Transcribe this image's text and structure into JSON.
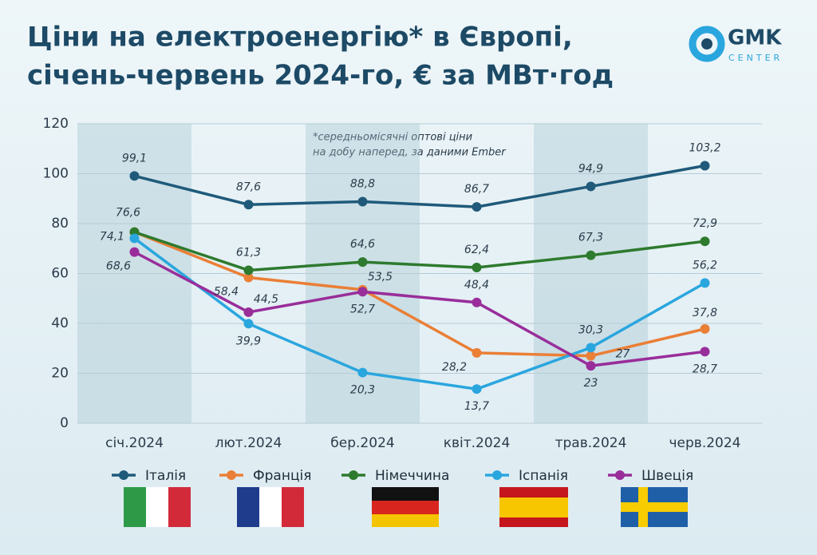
{
  "logo": {
    "name": "GMK",
    "sub": "CENTER"
  },
  "chart_data": {
    "type": "line",
    "title": [
      "Ціни на електроенергію* в Європі,",
      "січень-червень 2024-го, € за МВт·год"
    ],
    "annotation": [
      "*середньомісячні оптові ціни",
      "на добу наперед, за даними Ember"
    ],
    "categories": [
      "січ.2024",
      "лют.2024",
      "бер.2024",
      "квіт.2024",
      "трав.2024",
      "черв.2024"
    ],
    "ylim": [
      0,
      120
    ],
    "yticks": [
      0,
      20,
      40,
      60,
      80,
      100,
      120
    ],
    "grid": true,
    "series": [
      {
        "name": "Італія",
        "color": "#1f5a7a",
        "values": [
          99.1,
          87.6,
          88.8,
          86.7,
          94.9,
          103.2
        ],
        "value_labels": [
          "99,1",
          "87,6",
          "88,8",
          "86,7",
          "94,9",
          "103,2"
        ]
      },
      {
        "name": "Франція",
        "color": "#ea7f36",
        "values": [
          76.6,
          58.4,
          53.5,
          28.2,
          27,
          37.8
        ],
        "value_labels": [
          "76,6",
          "58,4",
          "53,5",
          "28,2",
          "27",
          "37,8"
        ]
      },
      {
        "name": "Німеччина",
        "color": "#2e7a2e",
        "values": [
          76.6,
          61.3,
          64.6,
          62.4,
          67.3,
          72.9
        ],
        "value_labels": [
          null,
          "61,3",
          "64,6",
          "62,4",
          "67,3",
          "72,9"
        ]
      },
      {
        "name": "Іспанія",
        "color": "#2aa6de",
        "values": [
          74.1,
          39.9,
          20.3,
          13.7,
          30.3,
          56.2
        ],
        "value_labels": [
          "74,1",
          "39,9",
          "20,3",
          "13,7",
          "30,3",
          "56,2"
        ]
      },
      {
        "name": "Швеція",
        "color": "#992d9a",
        "values": [
          68.6,
          44.5,
          52.7,
          48.4,
          23,
          28.7
        ],
        "value_labels": [
          "68,6",
          "44,5",
          "52,7",
          "48,4",
          "23",
          "28,7"
        ]
      }
    ]
  }
}
